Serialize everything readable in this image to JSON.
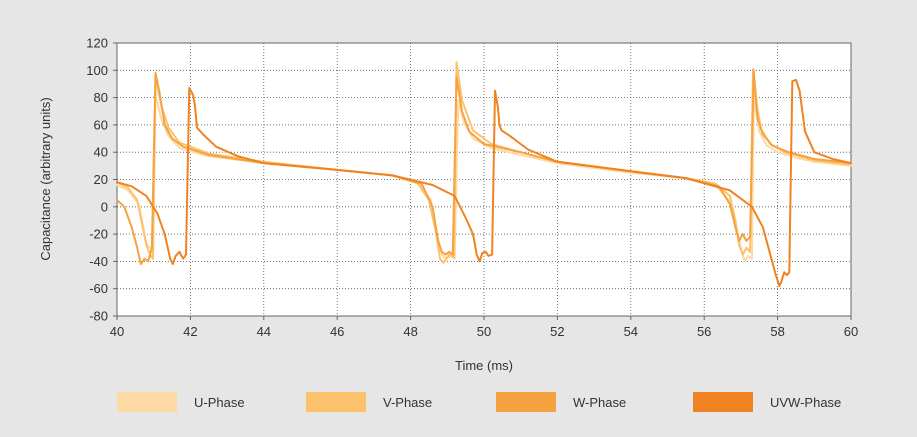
{
  "chart_data": {
    "type": "line",
    "title": "",
    "xlabel": "Time (ms)",
    "ylabel": "Capacitance (arbitrary units)",
    "xlim": [
      40,
      60
    ],
    "ylim": [
      -80,
      120
    ],
    "xticks": [
      40,
      42,
      44,
      46,
      48,
      50,
      52,
      54,
      56,
      58,
      60
    ],
    "yticks": [
      -80,
      -60,
      -40,
      -20,
      0,
      20,
      40,
      60,
      80,
      100,
      120
    ],
    "grid": true,
    "legend_position": "bottom",
    "series": [
      {
        "name": "U-Phase",
        "color": "#fdd9a3",
        "x": [
          40.0,
          40.3,
          40.6,
          40.75,
          40.82,
          40.9,
          40.98,
          41.05,
          41.2,
          41.4,
          41.7,
          42.5,
          44,
          46,
          47.5,
          48.2,
          48.55,
          48.7,
          48.85,
          48.95,
          49.1,
          49.2,
          49.3,
          49.45,
          49.7,
          50.2,
          51,
          52,
          54,
          55.5,
          56.3,
          56.7,
          56.9,
          57.0,
          57.1,
          57.2,
          57.3,
          57.36,
          57.42,
          57.5,
          57.7,
          58.0,
          58.5,
          59,
          60
        ],
        "y": [
          16,
          12,
          2,
          -20,
          -28,
          -30,
          -33,
          82,
          65,
          52,
          43,
          37,
          32,
          27,
          23,
          18,
          5,
          -18,
          -35,
          -38,
          -36,
          -38,
          78,
          62,
          50,
          43,
          38,
          32,
          25,
          21,
          16,
          4,
          -18,
          -30,
          -40,
          -36,
          -38,
          92,
          68,
          55,
          45,
          40,
          36,
          33,
          30
        ]
      },
      {
        "name": "V-Phase",
        "color": "#fcc26b",
        "x": [
          40.0,
          40.3,
          40.55,
          40.7,
          40.8,
          40.9,
          40.98,
          41.05,
          41.2,
          41.4,
          41.7,
          42.5,
          44,
          46,
          47.5,
          48.2,
          48.5,
          48.7,
          48.8,
          48.9,
          49.05,
          49.18,
          49.25,
          49.4,
          49.7,
          50.2,
          51,
          52,
          54,
          55.5,
          56.3,
          56.7,
          56.85,
          56.95,
          57.05,
          57.15,
          57.25,
          57.33,
          57.45,
          57.55,
          57.8,
          58.2,
          59,
          60
        ],
        "y": [
          18,
          14,
          5,
          -15,
          -28,
          -35,
          -38,
          96,
          75,
          58,
          47,
          39,
          33,
          27,
          23,
          17,
          5,
          -20,
          -38,
          -41,
          -35,
          -37,
          106,
          78,
          56,
          46,
          40,
          33,
          26,
          21,
          17,
          8,
          -10,
          -28,
          -35,
          -30,
          -33,
          101,
          72,
          57,
          46,
          40,
          34,
          31
        ]
      },
      {
        "name": "W-Phase",
        "color": "#f7a240",
        "x": [
          40.0,
          40.2,
          40.4,
          40.55,
          40.65,
          40.75,
          40.85,
          40.95,
          41.05,
          41.15,
          41.3,
          41.5,
          41.8,
          42.5,
          44,
          46,
          47.5,
          48.3,
          48.6,
          48.75,
          48.85,
          48.95,
          49.05,
          49.15,
          49.25,
          49.4,
          49.6,
          50,
          51,
          52,
          54,
          55.5,
          56.4,
          56.7,
          56.85,
          56.95,
          57.05,
          57.15,
          57.25,
          57.35,
          57.45,
          57.6,
          57.85,
          58.3,
          59,
          60
        ],
        "y": [
          5,
          0,
          -15,
          -30,
          -42,
          -38,
          -40,
          -30,
          98,
          85,
          60,
          50,
          44,
          38,
          32,
          27,
          23,
          17,
          0,
          -25,
          -33,
          -35,
          -33,
          -35,
          95,
          70,
          55,
          46,
          40,
          33,
          26,
          21,
          15,
          2,
          -15,
          -25,
          -20,
          -25,
          -22,
          100,
          65,
          53,
          45,
          40,
          35,
          32
        ]
      },
      {
        "name": "UVW-Phase",
        "color": "#f08321",
        "x": [
          40.0,
          40.4,
          40.8,
          41.1,
          41.3,
          41.45,
          41.52,
          41.6,
          41.7,
          41.8,
          41.88,
          41.97,
          42.07,
          42.12,
          42.18,
          42.35,
          42.7,
          43.3,
          44,
          46,
          47.5,
          48.6,
          49.2,
          49.5,
          49.7,
          49.8,
          49.88,
          49.95,
          50.05,
          50.12,
          50.22,
          50.3,
          50.38,
          50.42,
          50.48,
          50.7,
          51.2,
          52,
          54,
          55.5,
          56.7,
          57.3,
          57.6,
          57.8,
          57.95,
          58.05,
          58.1,
          58.18,
          58.25,
          58.32,
          58.4,
          58.5,
          58.6,
          58.75,
          59,
          59.5,
          60
        ],
        "y": [
          18,
          15,
          8,
          -5,
          -20,
          -38,
          -42,
          -36,
          -33,
          -38,
          -35,
          87,
          82,
          75,
          58,
          53,
          44,
          37,
          32,
          27,
          23,
          16,
          8,
          -8,
          -20,
          -35,
          -40,
          -34,
          -33,
          -36,
          -35,
          85,
          73,
          60,
          56,
          52,
          42,
          33,
          26,
          21,
          12,
          0,
          -15,
          -35,
          -50,
          -58,
          -55,
          -48,
          -50,
          -48,
          92,
          93,
          85,
          55,
          40,
          35,
          32
        ]
      }
    ]
  }
}
